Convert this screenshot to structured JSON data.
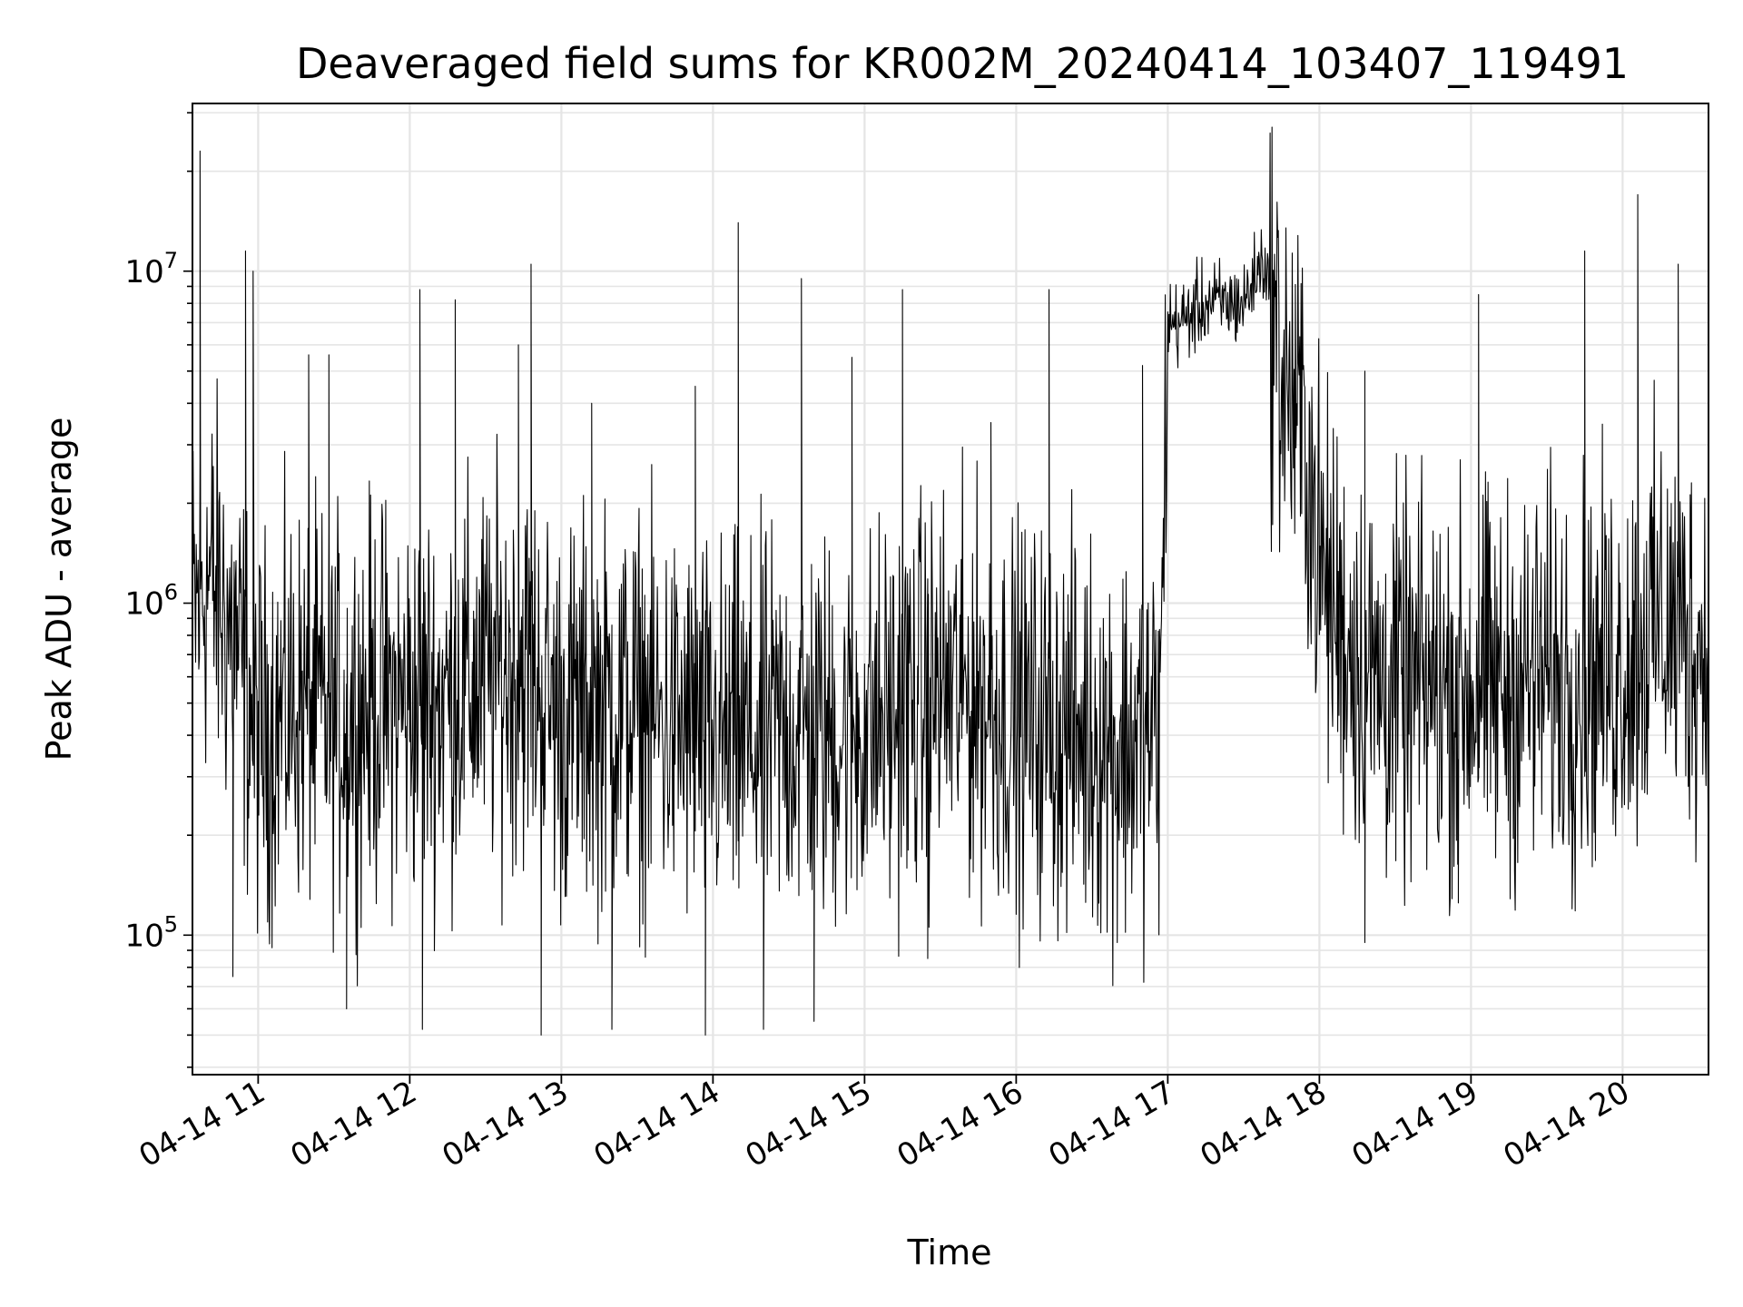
{
  "chart_data": {
    "type": "line",
    "title": "Deaveraged field sums for KR002M_20240414_103407_119491",
    "xlabel": "Time",
    "ylabel": "Peak ADU - average",
    "y_scale": "log",
    "ylim": [
      38000,
      32000000
    ],
    "xlim": [
      "2024-04-14 10:34",
      "2024-04-14 20:34"
    ],
    "grid": true,
    "line_color": "#000000",
    "grid_color": "#e5e5e5",
    "x_ticks": [
      {
        "time": "2024-04-14 11:00",
        "label": "04-14 11"
      },
      {
        "time": "2024-04-14 12:00",
        "label": "04-14 12"
      },
      {
        "time": "2024-04-14 13:00",
        "label": "04-14 13"
      },
      {
        "time": "2024-04-14 14:00",
        "label": "04-14 14"
      },
      {
        "time": "2024-04-14 15:00",
        "label": "04-14 15"
      },
      {
        "time": "2024-04-14 16:00",
        "label": "04-14 16"
      },
      {
        "time": "2024-04-14 17:00",
        "label": "04-14 17"
      },
      {
        "time": "2024-04-14 18:00",
        "label": "04-14 18"
      },
      {
        "time": "2024-04-14 19:00",
        "label": "04-14 19"
      },
      {
        "time": "2024-04-14 20:00",
        "label": "04-14 20"
      }
    ],
    "y_ticks": [
      {
        "value": 100000,
        "base": "10",
        "exp": "5"
      },
      {
        "value": 1000000,
        "base": "10",
        "exp": "6"
      },
      {
        "value": 10000000,
        "base": "10",
        "exp": "7"
      }
    ],
    "series": [
      {
        "x": [
          "2024-04-14 10:34",
          "2024-04-14 10:40",
          "2024-04-14 10:45",
          "2024-04-14 10:50",
          "2024-04-14 11:00",
          "2024-04-14 11:15",
          "2024-04-14 11:30",
          "2024-04-14 11:45",
          "2024-04-14 12:00",
          "2024-04-14 12:15",
          "2024-04-14 12:30",
          "2024-04-14 12:45",
          "2024-04-14 13:00",
          "2024-04-14 13:15",
          "2024-04-14 13:30",
          "2024-04-14 13:45",
          "2024-04-14 14:00",
          "2024-04-14 14:15",
          "2024-04-14 14:30",
          "2024-04-14 14:45",
          "2024-04-14 15:00",
          "2024-04-14 15:15",
          "2024-04-14 15:30",
          "2024-04-14 15:45",
          "2024-04-14 16:00",
          "2024-04-14 16:15",
          "2024-04-14 16:30",
          "2024-04-14 16:45",
          "2024-04-14 16:57",
          "2024-04-14 17:00",
          "2024-04-14 17:05",
          "2024-04-14 17:15",
          "2024-04-14 17:30",
          "2024-04-14 17:38",
          "2024-04-14 17:45",
          "2024-04-14 17:55",
          "2024-04-14 18:00",
          "2024-04-14 18:10",
          "2024-04-14 18:20",
          "2024-04-14 18:30",
          "2024-04-14 18:45",
          "2024-04-14 19:00",
          "2024-04-14 19:15",
          "2024-04-14 19:30",
          "2024-04-14 19:45",
          "2024-04-14 20:00",
          "2024-04-14 20:15",
          "2024-04-14 20:34"
        ],
        "y": [
          900000,
          1200000,
          1000000,
          800000,
          400000,
          500000,
          450000,
          500000,
          500000,
          520000,
          600000,
          650000,
          450000,
          480000,
          480000,
          420000,
          380000,
          380000,
          420000,
          400000,
          420000,
          480000,
          550000,
          520000,
          450000,
          420000,
          400000,
          380000,
          420000,
          7000000,
          7000000,
          8000000,
          8000000,
          11000000,
          5000000,
          3000000,
          1300000,
          800000,
          600000,
          550000,
          550000,
          550000,
          550000,
          600000,
          600000,
          650000,
          900000,
          700000
        ],
        "spikes": [
          {
            "x": "2024-04-14 10:37",
            "y": 23000000
          },
          {
            "x": "2024-04-14 10:55",
            "y": 11500000
          },
          {
            "x": "2024-04-14 10:58",
            "y": 10000000
          },
          {
            "x": "2024-04-14 11:20",
            "y": 5600000
          },
          {
            "x": "2024-04-14 11:28",
            "y": 5600000
          },
          {
            "x": "2024-04-14 12:04",
            "y": 8800000
          },
          {
            "x": "2024-04-14 12:18",
            "y": 8200000
          },
          {
            "x": "2024-04-14 12:43",
            "y": 6000000
          },
          {
            "x": "2024-04-14 12:48",
            "y": 10500000
          },
          {
            "x": "2024-04-14 13:12",
            "y": 4000000
          },
          {
            "x": "2024-04-14 13:53",
            "y": 4500000
          },
          {
            "x": "2024-04-14 14:10",
            "y": 14000000
          },
          {
            "x": "2024-04-14 14:35",
            "y": 9500000
          },
          {
            "x": "2024-04-14 14:55",
            "y": 5500000
          },
          {
            "x": "2024-04-14 15:15",
            "y": 8800000
          },
          {
            "x": "2024-04-14 15:50",
            "y": 3500000
          },
          {
            "x": "2024-04-14 16:13",
            "y": 8800000
          },
          {
            "x": "2024-04-14 16:50",
            "y": 5200000
          },
          {
            "x": "2024-04-14 18:18",
            "y": 5000000
          },
          {
            "x": "2024-04-14 19:03",
            "y": 8500000
          },
          {
            "x": "2024-04-14 19:45",
            "y": 11500000
          },
          {
            "x": "2024-04-14 20:06",
            "y": 17000000
          },
          {
            "x": "2024-04-14 20:22",
            "y": 10500000
          }
        ],
        "dips": [
          {
            "x": "2024-04-14 10:50",
            "y": 75000
          },
          {
            "x": "2024-04-14 11:35",
            "y": 60000
          },
          {
            "x": "2024-04-14 12:05",
            "y": 52000
          },
          {
            "x": "2024-04-14 12:52",
            "y": 50000
          },
          {
            "x": "2024-04-14 13:20",
            "y": 52000
          },
          {
            "x": "2024-04-14 13:57",
            "y": 50000
          },
          {
            "x": "2024-04-14 14:20",
            "y": 52000
          },
          {
            "x": "2024-04-14 14:40",
            "y": 55000
          },
          {
            "x": "2024-04-14 15:25",
            "y": 85000
          },
          {
            "x": "2024-04-14 16:40",
            "y": 95000
          },
          {
            "x": "2024-04-14 18:18",
            "y": 95000
          },
          {
            "x": "2024-04-14 18:55",
            "y": 125000
          },
          {
            "x": "2024-04-14 19:40",
            "y": 120000
          }
        ]
      }
    ]
  }
}
